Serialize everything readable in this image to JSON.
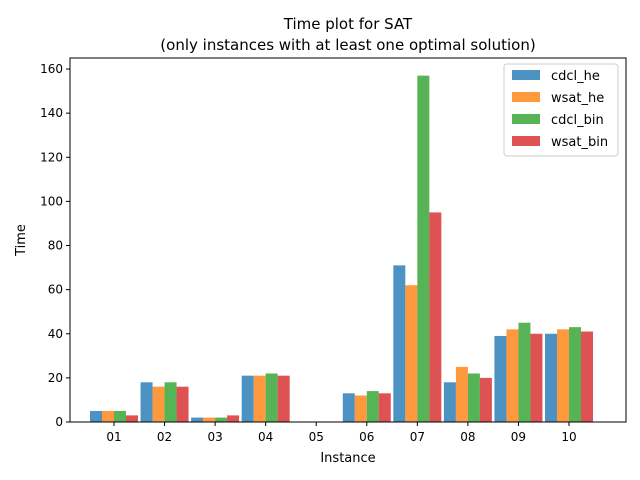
{
  "chart_data": {
    "type": "bar",
    "title": "Time plot for SAT",
    "subtitle": "(only instances with at least one optimal solution)",
    "xlabel": "Instance",
    "ylabel": "Time",
    "ylim": [
      0,
      165
    ],
    "yticks": [
      0,
      20,
      40,
      60,
      80,
      100,
      120,
      140,
      160
    ],
    "categories": [
      "01",
      "02",
      "03",
      "04",
      "05",
      "06",
      "07",
      "08",
      "09",
      "10"
    ],
    "legend_position": "top-right",
    "series": [
      {
        "name": "cdcl_he",
        "color": "#1f77b4",
        "values": [
          5,
          18,
          2,
          21,
          0,
          13,
          71,
          18,
          39,
          40
        ]
      },
      {
        "name": "wsat_he",
        "color": "#ff7f0e",
        "values": [
          5,
          16,
          2,
          21,
          0,
          12,
          62,
          25,
          42,
          42
        ]
      },
      {
        "name": "cdcl_bin",
        "color": "#2ca02c",
        "values": [
          5,
          18,
          2,
          22,
          0,
          14,
          157,
          22,
          45,
          43
        ]
      },
      {
        "name": "wsat_bin",
        "color": "#d62728",
        "values": [
          3,
          16,
          3,
          21,
          0,
          13,
          95,
          20,
          40,
          41
        ]
      }
    ]
  }
}
